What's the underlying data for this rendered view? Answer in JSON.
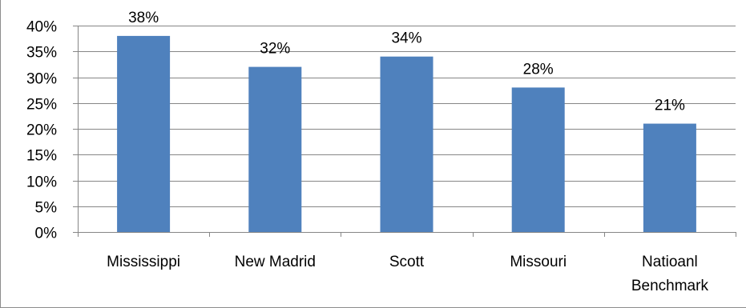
{
  "chart_data": {
    "type": "bar",
    "title": "",
    "xlabel": "",
    "ylabel": "",
    "categories": [
      "Mississippi",
      "New Madrid",
      "Scott",
      "Missouri",
      "Natioanl Benchmark"
    ],
    "category_lines": [
      [
        "Mississippi"
      ],
      [
        "New Madrid"
      ],
      [
        "Scott"
      ],
      [
        "Missouri"
      ],
      [
        "Natioanl",
        "Benchmark"
      ]
    ],
    "values": [
      38,
      32,
      34,
      28,
      21
    ],
    "data_labels": [
      "38%",
      "32%",
      "34%",
      "28%",
      "21%"
    ],
    "ylim": [
      0,
      40
    ],
    "yticks": [
      0,
      5,
      10,
      15,
      20,
      25,
      30,
      35,
      40
    ],
    "ytick_labels": [
      "0%",
      "5%",
      "10%",
      "15%",
      "20%",
      "25%",
      "30%",
      "35%",
      "40%"
    ],
    "grid": true,
    "legend": "none",
    "bar_color": "#4f81bd",
    "grid_color": "#868686"
  }
}
